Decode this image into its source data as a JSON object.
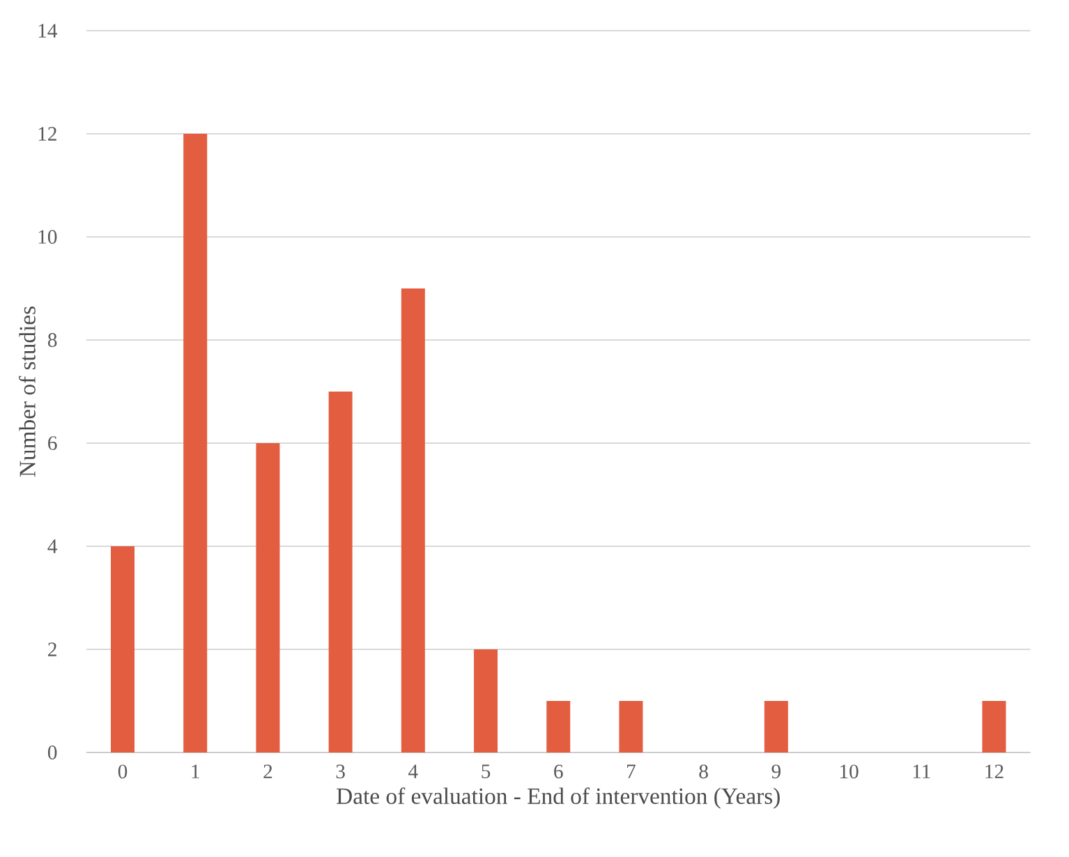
{
  "chart_data": {
    "type": "bar",
    "xlabel": "Date of evaluation - End of intervention (Years)",
    "ylabel": "Number of studies",
    "categories": [
      "0",
      "1",
      "2",
      "3",
      "4",
      "5",
      "6",
      "7",
      "8",
      "9",
      "10",
      "11",
      "12"
    ],
    "values": [
      4,
      12,
      6,
      7,
      9,
      2,
      1,
      1,
      0,
      1,
      0,
      0,
      1
    ],
    "color": "#e35e40",
    "ylim": [
      0,
      14
    ],
    "yticks": [
      0,
      2,
      4,
      6,
      8,
      10,
      12,
      14
    ],
    "grid": "y"
  }
}
